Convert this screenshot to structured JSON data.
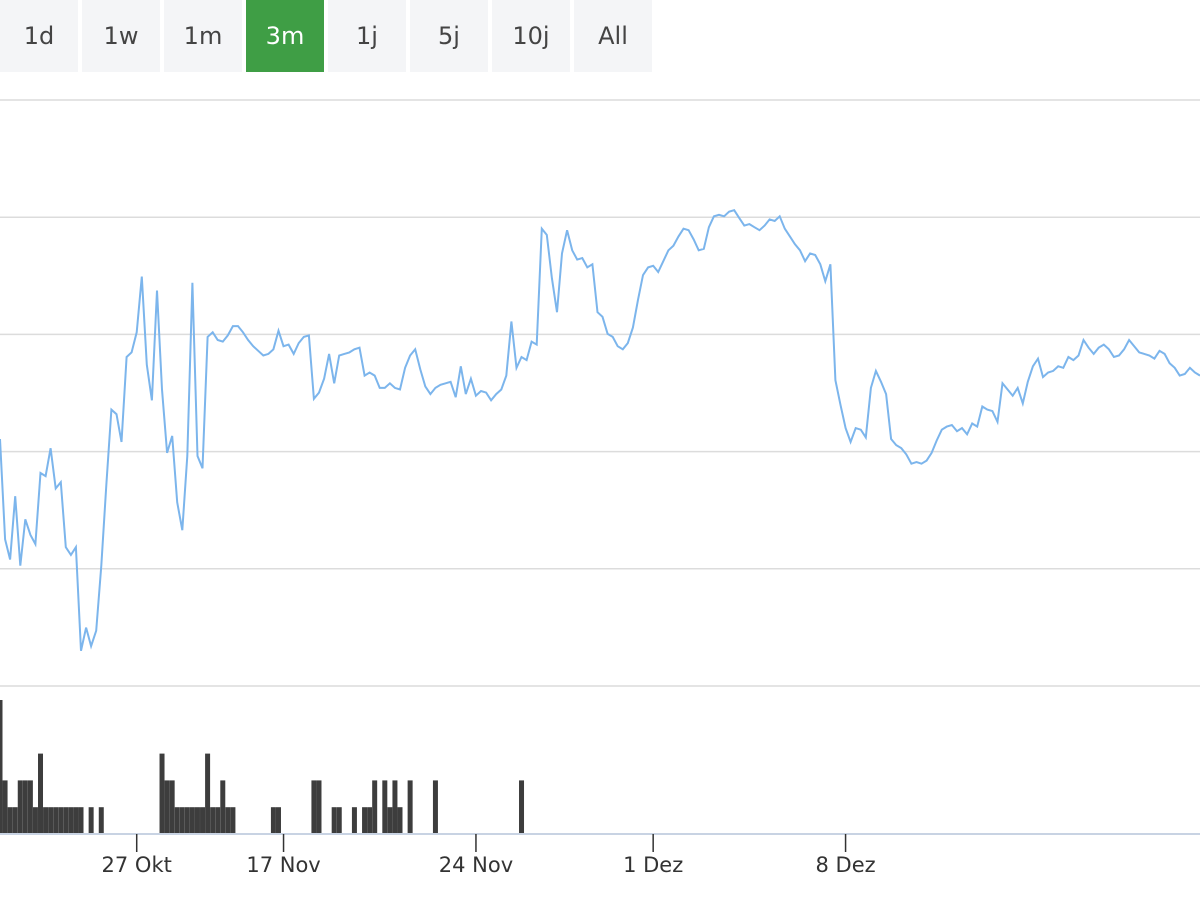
{
  "range_selector": {
    "buttons": [
      "1d",
      "1w",
      "1m",
      "3m",
      "1j",
      "5j",
      "10j",
      "All"
    ],
    "active": "3m",
    "active_color": "#3f9e45"
  },
  "chart_data": {
    "type": "line",
    "line_color": "#7cb5ec",
    "volume_color": "#3d3d3d",
    "grid": true,
    "y_axis_labels_visible": false,
    "x_ticks": [
      {
        "label": "27 Okt",
        "index": 27
      },
      {
        "label": "17 Nov",
        "index": 56
      },
      {
        "label": "24 Nov",
        "index": 94
      },
      {
        "label": "1 Dez",
        "index": 129
      },
      {
        "label": "8 Dez",
        "index": 167
      }
    ],
    "price": [
      43.0,
      36.5,
      35.2,
      39.3,
      34.8,
      37.8,
      36.8,
      36.2,
      40.8,
      40.6,
      42.4,
      39.8,
      40.2,
      36.0,
      35.5,
      36.0,
      29.3,
      30.8,
      29.6,
      30.6,
      34.8,
      40.0,
      44.9,
      44.6,
      42.8,
      48.3,
      48.6,
      49.9,
      53.5,
      47.8,
      45.5,
      52.6,
      46.2,
      42.1,
      43.2,
      38.9,
      37.1,
      41.9,
      53.1,
      41.9,
      41.1,
      49.6,
      49.9,
      49.4,
      49.3,
      49.7,
      50.3,
      50.3,
      49.9,
      49.4,
      49.0,
      48.7,
      48.4,
      48.5,
      48.8,
      50.0,
      49.0,
      49.1,
      48.5,
      49.2,
      49.6,
      49.7,
      45.6,
      46.0,
      46.9,
      48.5,
      46.6,
      48.4,
      48.5,
      48.6,
      48.8,
      48.9,
      47.1,
      47.3,
      47.1,
      46.3,
      46.3,
      46.6,
      46.3,
      46.2,
      47.6,
      48.4,
      48.8,
      47.5,
      46.4,
      45.9,
      46.3,
      46.5,
      46.6,
      46.7,
      45.7,
      47.7,
      45.9,
      46.9,
      45.8,
      46.1,
      46.0,
      45.5,
      45.9,
      46.2,
      47.1,
      50.6,
      47.6,
      48.3,
      48.1,
      49.3,
      49.1,
      56.6,
      56.2,
      53.4,
      51.2,
      55.0,
      56.5,
      55.2,
      54.6,
      54.7,
      54.1,
      54.3,
      51.2,
      50.9,
      49.8,
      49.6,
      49.0,
      48.8,
      49.2,
      50.2,
      52.0,
      53.6,
      54.1,
      54.2,
      53.8,
      54.5,
      55.2,
      55.5,
      56.1,
      56.6,
      56.5,
      55.9,
      55.2,
      55.3,
      56.7,
      57.4,
      57.5,
      57.4,
      57.7,
      57.8,
      57.3,
      56.8,
      56.9,
      56.7,
      56.5,
      56.8,
      57.2,
      57.1,
      57.4,
      56.6,
      56.1,
      55.6,
      55.2,
      54.5,
      55.0,
      54.9,
      54.3,
      53.2,
      54.3,
      46.8,
      45.2,
      43.7,
      42.8,
      43.7,
      43.6,
      43.1,
      46.3,
      47.4,
      46.7,
      45.9,
      43.0,
      42.6,
      42.4,
      42.0,
      41.4,
      41.5,
      41.4,
      41.6,
      42.1,
      42.9,
      43.6,
      43.8,
      43.9,
      43.5,
      43.7,
      43.3,
      44.0,
      43.8,
      45.1,
      44.9,
      44.8,
      44.1,
      46.6,
      46.2,
      45.8,
      46.3,
      45.3,
      46.7,
      47.7,
      48.2,
      47.0,
      47.3,
      47.4,
      47.7,
      47.6,
      48.3,
      48.1,
      48.4,
      49.4,
      48.9,
      48.5,
      48.9,
      49.1,
      48.8,
      48.3,
      48.4,
      48.8,
      49.4,
      49.0,
      48.6,
      48.5,
      48.4,
      48.2,
      48.7,
      48.5,
      47.9,
      47.6,
      47.1,
      47.2,
      47.6,
      47.3,
      47.1
    ],
    "volume": [
      5,
      2,
      1,
      1,
      2,
      2,
      2,
      1,
      3,
      1,
      1,
      1,
      1,
      1,
      1,
      1,
      1,
      0,
      1,
      0,
      1,
      0,
      0,
      0,
      0,
      0,
      0,
      0,
      0,
      0,
      0,
      0,
      3,
      2,
      2,
      1,
      1,
      1,
      1,
      1,
      1,
      3,
      1,
      1,
      2,
      1,
      1,
      0,
      0,
      0,
      0,
      0,
      0,
      0,
      1,
      1,
      0,
      0,
      0,
      0,
      0,
      0,
      2,
      2,
      0,
      0,
      1,
      1,
      0,
      0,
      1,
      0,
      1,
      1,
      2,
      0,
      2,
      1,
      2,
      1,
      0,
      2,
      0,
      0,
      0,
      0,
      2,
      0,
      0,
      0,
      0,
      0,
      0,
      0,
      0,
      0,
      0,
      0,
      0,
      0,
      0,
      0,
      0,
      2,
      0,
      0,
      0,
      0,
      0,
      0,
      0,
      0,
      0,
      0,
      0,
      0,
      0,
      0,
      0,
      0,
      0,
      0,
      0,
      0,
      0,
      0,
      0,
      0,
      0,
      0,
      0,
      0,
      0,
      0,
      0,
      0,
      0,
      0,
      0,
      0,
      0,
      0,
      0,
      0,
      0,
      0,
      0,
      0,
      0,
      0,
      0,
      0,
      0,
      0,
      0,
      0,
      0,
      0,
      0,
      0,
      0,
      0,
      0,
      0,
      0,
      0,
      0,
      0,
      0,
      0,
      0,
      0,
      0,
      0,
      0,
      0,
      0,
      0,
      0,
      0,
      0,
      0,
      0,
      0,
      0,
      0,
      0,
      0,
      0,
      0,
      0,
      0,
      0,
      0,
      0,
      0,
      0,
      0,
      0,
      0,
      0,
      0,
      0,
      0,
      0,
      0,
      0,
      0,
      0,
      0,
      0,
      0,
      0,
      0,
      0,
      0,
      0,
      0,
      0,
      0,
      0,
      0,
      0,
      0,
      0,
      0,
      0,
      0,
      0,
      0,
      0,
      0,
      0,
      0,
      0,
      0,
      0,
      0
    ]
  }
}
